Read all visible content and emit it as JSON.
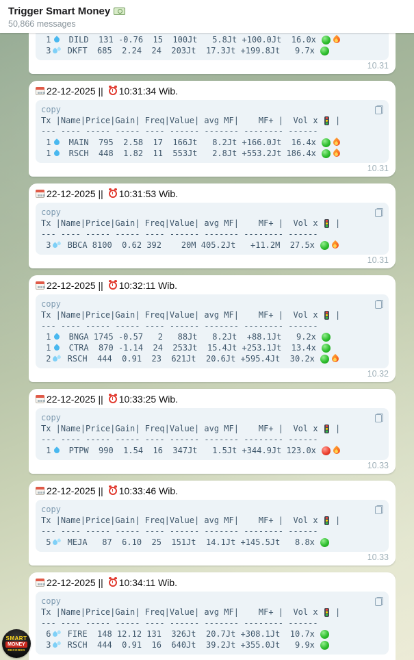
{
  "palette": {
    "background_top": "#8fa68e",
    "background_bottom": "#ecebd6",
    "bubble": "#ffffff",
    "code_background": "#edf3f7",
    "code_text": "#3f576b",
    "green_light": "#2fbe2f",
    "red_light": "#ee4433",
    "fire": "#ff9d2e",
    "timestamp": "#9fb0b8"
  },
  "header": {
    "title": "Trigger Smart Money",
    "title_icon": "money-banknote-icon",
    "subtitle": "50,866 messages"
  },
  "avatar": {
    "line1": "SMART",
    "line2": "MONEY",
    "line3": "RECODED"
  },
  "code_block": {
    "copy_label": "copy",
    "table_header": "Tx |Name|Price|Gain| Freq|Value| avg MF|    MF+ |  Vol x ",
    "table_header_end": " |",
    "column_names": [
      "Tx",
      "Name",
      "Price",
      "Gain",
      "Freq",
      "Value",
      "avg MF",
      "MF+",
      "Vol x",
      "traffic-light-icon"
    ],
    "separator": "--- ---- ----- ----- ---- ------ ------- -------- ------",
    "date_separator": " || "
  },
  "messages": [
    {
      "date": "",
      "time": "",
      "sent": "10.31",
      "rows": [
        {
          "tx": "1",
          "drop": "single",
          "name": "DILD",
          "price": "131",
          "gain": "-0.76",
          "freq": "15",
          "value": "100Jt",
          "avg_mf": "5.8Jt",
          "mf_plus": "+100.0Jt",
          "vol": "16.0x",
          "light": "green",
          "fire": true
        },
        {
          "tx": "3",
          "drop": "multi",
          "name": "DKFT",
          "price": "685",
          "gain": "2.24",
          "freq": "24",
          "value": "203Jt",
          "avg_mf": "17.3Jt",
          "mf_plus": "+199.8Jt",
          "vol": "9.7x",
          "light": "green",
          "fire": false
        }
      ]
    },
    {
      "date": "22-12-2025",
      "time": "10:31:34 Wib.",
      "sent": "10.31",
      "rows": [
        {
          "tx": "1",
          "drop": "single",
          "name": "MAIN",
          "price": "795",
          "gain": "2.58",
          "freq": "17",
          "value": "166Jt",
          "avg_mf": "8.2Jt",
          "mf_plus": "+166.0Jt",
          "vol": "16.4x",
          "light": "green",
          "fire": true
        },
        {
          "tx": "1",
          "drop": "single",
          "name": "RSCH",
          "price": "448",
          "gain": "1.82",
          "freq": "11",
          "value": "553Jt",
          "avg_mf": "2.8Jt",
          "mf_plus": "+553.2Jt",
          "vol": "186.4x",
          "light": "green",
          "fire": true
        }
      ]
    },
    {
      "date": "22-12-2025",
      "time": "10:31:53 Wib.",
      "sent": "10.31",
      "rows": [
        {
          "tx": "3",
          "drop": "multi",
          "name": "BBCA",
          "price": "8100",
          "gain": "0.62",
          "freq": "392",
          "value": "20M",
          "avg_mf": "405.2Jt",
          "mf_plus": "+11.2M",
          "vol": "27.5x",
          "light": "green",
          "fire": true
        }
      ]
    },
    {
      "date": "22-12-2025",
      "time": "10:32:11 Wib.",
      "sent": "10.32",
      "rows": [
        {
          "tx": "1",
          "drop": "single",
          "name": "BNGA",
          "price": "1745",
          "gain": "-0.57",
          "freq": "2",
          "value": "88Jt",
          "avg_mf": "8.2Jt",
          "mf_plus": "+88.1Jt",
          "vol": "9.2x",
          "light": "green",
          "fire": false
        },
        {
          "tx": "1",
          "drop": "single",
          "name": "CTRA",
          "price": "870",
          "gain": "-1.14",
          "freq": "24",
          "value": "253Jt",
          "avg_mf": "15.4Jt",
          "mf_plus": "+253.1Jt",
          "vol": "13.4x",
          "light": "green",
          "fire": false
        },
        {
          "tx": "2",
          "drop": "multi",
          "name": "RSCH",
          "price": "444",
          "gain": "0.91",
          "freq": "23",
          "value": "621Jt",
          "avg_mf": "20.6Jt",
          "mf_plus": "+595.4Jt",
          "vol": "30.2x",
          "light": "green",
          "fire": true
        }
      ]
    },
    {
      "date": "22-12-2025",
      "time": "10:33:25 Wib.",
      "sent": "10.33",
      "rows": [
        {
          "tx": "1",
          "drop": "single",
          "name": "PTPW",
          "price": "990",
          "gain": "1.54",
          "freq": "16",
          "value": "347Jt",
          "avg_mf": "1.5Jt",
          "mf_plus": "+344.9Jt",
          "vol": "123.0x",
          "light": "red",
          "fire": true
        }
      ]
    },
    {
      "date": "22-12-2025",
      "time": "10:33:46 Wib.",
      "sent": "10.33",
      "rows": [
        {
          "tx": "5",
          "drop": "multi",
          "name": "MEJA",
          "price": "87",
          "gain": "6.10",
          "freq": "25",
          "value": "151Jt",
          "avg_mf": "14.1Jt",
          "mf_plus": "+145.5Jt",
          "vol": "8.8x",
          "light": "green",
          "fire": false
        }
      ]
    },
    {
      "date": "22-12-2025",
      "time": "10:34:11 Wib.",
      "sent": "",
      "rows": [
        {
          "tx": "6",
          "drop": "multi",
          "name": "FIRE",
          "price": "148",
          "gain": "12.12",
          "freq": "131",
          "value": "326Jt",
          "avg_mf": "20.7Jt",
          "mf_plus": "+308.1Jt",
          "vol": "10.7x",
          "light": "green",
          "fire": false
        },
        {
          "tx": "3",
          "drop": "multi",
          "name": "RSCH",
          "price": "444",
          "gain": "0.91",
          "freq": "16",
          "value": "640Jt",
          "avg_mf": "39.2Jt",
          "mf_plus": "+355.0Jt",
          "vol": "9.9x",
          "light": "green",
          "fire": false
        }
      ]
    }
  ]
}
